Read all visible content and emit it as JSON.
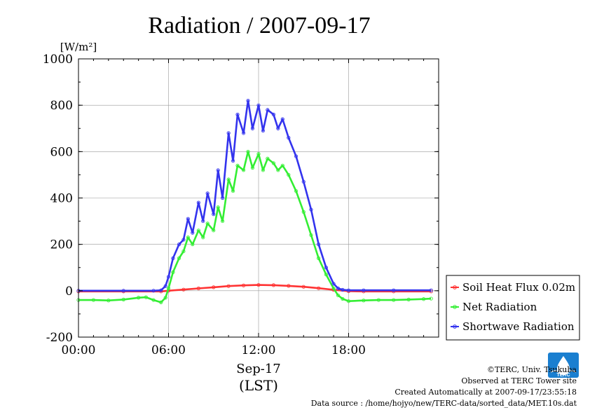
{
  "chart_data": {
    "type": "line",
    "title": "Radiation / 2007-09-17",
    "ylabel": "[W/m²]",
    "xlabel_date": "Sep-17",
    "xlabel_unit": "(LST)",
    "ylim": [
      -200,
      1000
    ],
    "xlim": [
      0,
      24
    ],
    "yticks": [
      -200,
      0,
      200,
      400,
      600,
      800,
      1000
    ],
    "xtick_labels": [
      "00:00",
      "06:00",
      "12:00",
      "18:00"
    ],
    "xtick_hours": [
      0,
      6,
      12,
      18
    ],
    "grid": true,
    "legend_position": "right-bottom",
    "series": [
      {
        "name": "Soil Heat Flux 0.02m",
        "color": "#ff3333",
        "x": [
          0,
          3,
          5.5,
          6,
          7,
          8,
          9,
          10,
          11,
          12,
          13,
          14,
          15,
          16,
          17,
          18,
          19,
          21,
          23.5
        ],
        "y": [
          -3,
          -3,
          -3,
          0,
          5,
          10,
          15,
          20,
          23,
          25,
          24,
          21,
          17,
          11,
          4,
          -2,
          -3,
          -3,
          -3
        ]
      },
      {
        "name": "Net Radiation",
        "color": "#33ee33",
        "x": [
          0,
          1,
          2,
          3,
          4,
          4.5,
          5,
          5.5,
          5.8,
          6,
          6.3,
          6.7,
          7,
          7.3,
          7.6,
          8,
          8.3,
          8.6,
          9,
          9.3,
          9.6,
          10,
          10.3,
          10.6,
          11,
          11.3,
          11.6,
          12,
          12.3,
          12.6,
          13,
          13.3,
          13.6,
          14,
          14.5,
          15,
          15.5,
          16,
          16.5,
          17,
          17.3,
          17.6,
          18,
          19,
          20,
          21,
          22,
          23,
          23.5
        ],
        "y": [
          -40,
          -40,
          -42,
          -38,
          -30,
          -28,
          -40,
          -50,
          -30,
          10,
          80,
          140,
          170,
          230,
          200,
          260,
          230,
          290,
          260,
          360,
          300,
          480,
          430,
          540,
          520,
          600,
          530,
          590,
          520,
          570,
          550,
          520,
          540,
          500,
          430,
          340,
          240,
          140,
          70,
          10,
          -20,
          -35,
          -45,
          -42,
          -40,
          -40,
          -38,
          -36,
          -34
        ]
      },
      {
        "name": "Shortwave Radiation",
        "color": "#3333ee",
        "x": [
          0,
          3,
          5,
          5.5,
          5.8,
          6,
          6.3,
          6.7,
          7,
          7.3,
          7.6,
          8,
          8.3,
          8.6,
          9,
          9.3,
          9.6,
          10,
          10.3,
          10.6,
          11,
          11.3,
          11.6,
          12,
          12.3,
          12.6,
          13,
          13.3,
          13.6,
          14,
          14.5,
          15,
          15.5,
          16,
          16.5,
          17,
          17.3,
          17.6,
          18,
          19,
          21,
          23.5
        ],
        "y": [
          0,
          0,
          0,
          2,
          20,
          60,
          140,
          200,
          220,
          310,
          250,
          380,
          300,
          420,
          330,
          520,
          400,
          680,
          560,
          760,
          680,
          820,
          700,
          800,
          690,
          780,
          760,
          700,
          740,
          660,
          580,
          470,
          350,
          200,
          100,
          30,
          10,
          4,
          2,
          2,
          2,
          2
        ]
      }
    ]
  },
  "footer": {
    "copyright": "©TERC, Univ. Tsukuba",
    "observed": "Observed at TERC Tower site",
    "created": "Created Automatically at 2007-09-17/23:55:18",
    "source": "Data source : /home/hojyo/new/TERC-data/sorted_data/MET.10s.dat",
    "logo_text": "TERC"
  }
}
